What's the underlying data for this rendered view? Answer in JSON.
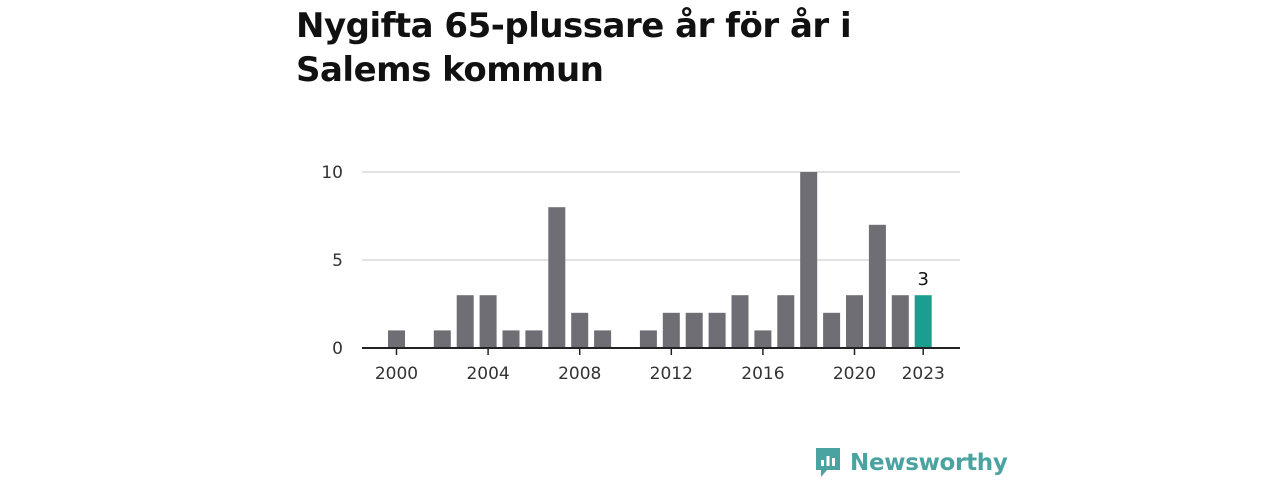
{
  "chart_data": {
    "type": "bar",
    "title": "Nygifta 65-plussare år för år i Salems kommun",
    "xlabel": "",
    "ylabel": "",
    "x": [
      2000,
      2001,
      2002,
      2003,
      2004,
      2005,
      2006,
      2007,
      2008,
      2009,
      2010,
      2011,
      2012,
      2013,
      2014,
      2015,
      2016,
      2017,
      2018,
      2019,
      2020,
      2021,
      2022,
      2023
    ],
    "values": [
      1,
      0,
      1,
      3,
      3,
      1,
      1,
      8,
      2,
      1,
      0,
      1,
      2,
      2,
      2,
      3,
      1,
      3,
      10,
      2,
      3,
      7,
      3,
      3
    ],
    "xticks": [
      2000,
      2004,
      2008,
      2012,
      2016,
      2020,
      2023
    ],
    "yticks": [
      0,
      5,
      10
    ],
    "ylim": [
      0,
      10
    ],
    "grid": true,
    "highlight": {
      "x": 2023,
      "label": "3"
    },
    "colors": {
      "bar": "#6f6e74",
      "highlight": "#1a9e8f",
      "grid": "#d9d9d9",
      "axis": "#222222"
    }
  },
  "brand": {
    "name": "Newsworthy",
    "icon": "newsworthy-logo-icon"
  }
}
